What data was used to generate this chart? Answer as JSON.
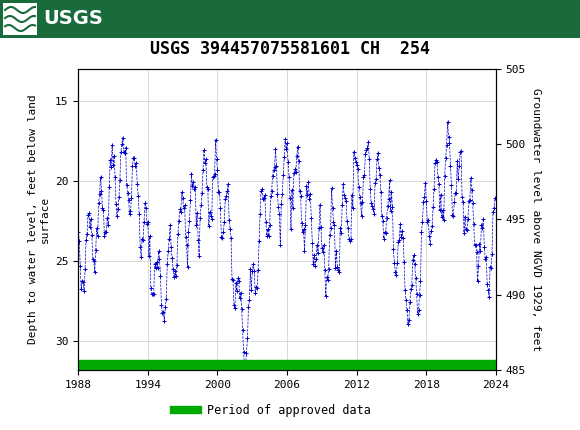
{
  "title": "USGS 394457075581601 CH  254",
  "ylabel_left": "Depth to water level, feet below land\nsurface",
  "ylabel_right": "Groundwater level above NGVD 1929, feet",
  "xlim": [
    1988,
    2024
  ],
  "ylim_left": [
    31.8,
    13.0
  ],
  "ylim_right": [
    485,
    505
  ],
  "yticks_left": [
    15,
    20,
    25,
    30
  ],
  "yticks_right": [
    485,
    490,
    495,
    500,
    505
  ],
  "xticks": [
    1988,
    1994,
    2000,
    2006,
    2012,
    2018,
    2024
  ],
  "line_color": "#0000CC",
  "marker": "+",
  "linestyle": "--",
  "legend_label": "Period of approved data",
  "legend_color": "#00AA00",
  "header_color": "#1a6b3c",
  "bg_color": "#ffffff",
  "plot_bg_color": "#ffffff",
  "grid_color": "#cccccc",
  "title_fontsize": 12,
  "axis_label_fontsize": 8,
  "tick_fontsize": 8,
  "green_bar_ymin": 31.2,
  "green_bar_ymax": 31.8
}
